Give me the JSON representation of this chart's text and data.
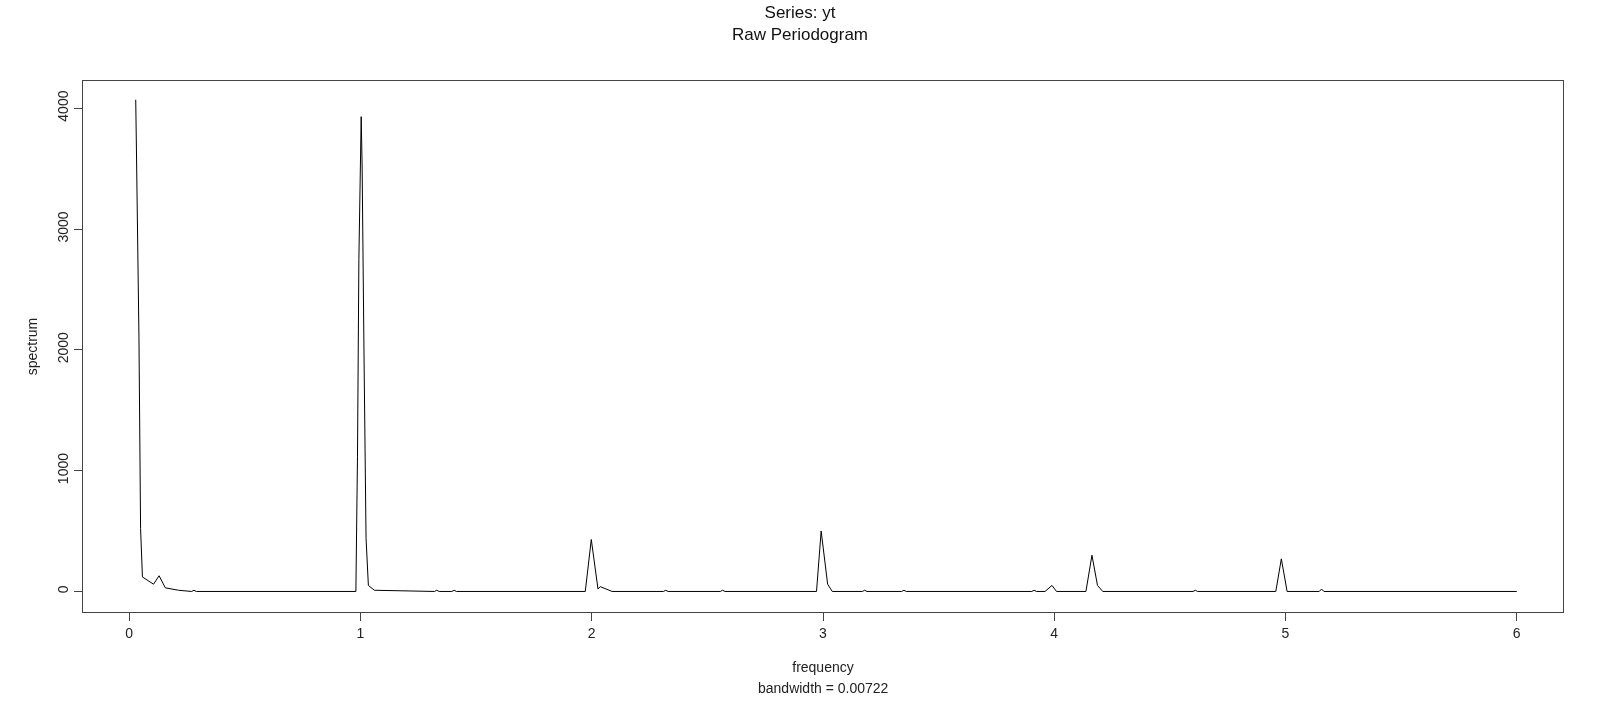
{
  "chart_data": {
    "type": "line",
    "title": "Series: yt",
    "subtitle": "Raw Periodogram",
    "xlabel": "frequency",
    "ylabel": "spectrum",
    "annotations": [
      "bandwidth = 0.00722"
    ],
    "x": [
      0.028,
      0.031,
      0.042,
      0.049,
      0.057,
      0.105,
      0.129,
      0.156,
      0.213,
      0.27,
      0.28,
      0.29,
      0.98,
      0.987,
      0.993,
      1.003,
      1.007,
      1.015,
      1.024,
      1.034,
      1.06,
      1.32,
      1.33,
      1.34,
      1.395,
      1.405,
      1.415,
      1.972,
      1.998,
      2.027,
      2.037,
      2.088,
      2.31,
      2.32,
      2.33,
      2.556,
      2.566,
      2.576,
      2.972,
      2.992,
      3.02,
      3.04,
      3.17,
      3.18,
      3.19,
      3.34,
      3.35,
      3.36,
      3.903,
      3.913,
      3.923,
      3.96,
      3.99,
      4.01,
      4.137,
      4.163,
      4.187,
      4.21,
      4.6,
      4.61,
      4.62,
      4.958,
      4.982,
      5.007,
      5.146,
      5.156,
      5.166,
      6.0
    ],
    "values": [
      4070,
      3670,
      2100,
      520,
      120,
      60,
      130,
      30,
      10,
      0,
      10,
      0,
      0,
      1120,
      2750,
      3930,
      3530,
      1990,
      440,
      50,
      10,
      0,
      10,
      0,
      0,
      10,
      0,
      0,
      430,
      20,
      40,
      0,
      0,
      10,
      0,
      0,
      10,
      0,
      0,
      500,
      60,
      0,
      0,
      10,
      0,
      0,
      10,
      0,
      0,
      10,
      0,
      0,
      50,
      0,
      0,
      300,
      50,
      0,
      0,
      10,
      0,
      0,
      270,
      0,
      0,
      20,
      0,
      0
    ],
    "color": "#000000",
    "xlim": [
      -0.2,
      6.2
    ],
    "ylim": [
      -170,
      4225
    ],
    "xticks": [
      0,
      1,
      2,
      3,
      4,
      5,
      6
    ],
    "yticks": [
      0,
      1000,
      2000,
      3000,
      4000
    ],
    "line_style": "solid",
    "marker": "none"
  }
}
